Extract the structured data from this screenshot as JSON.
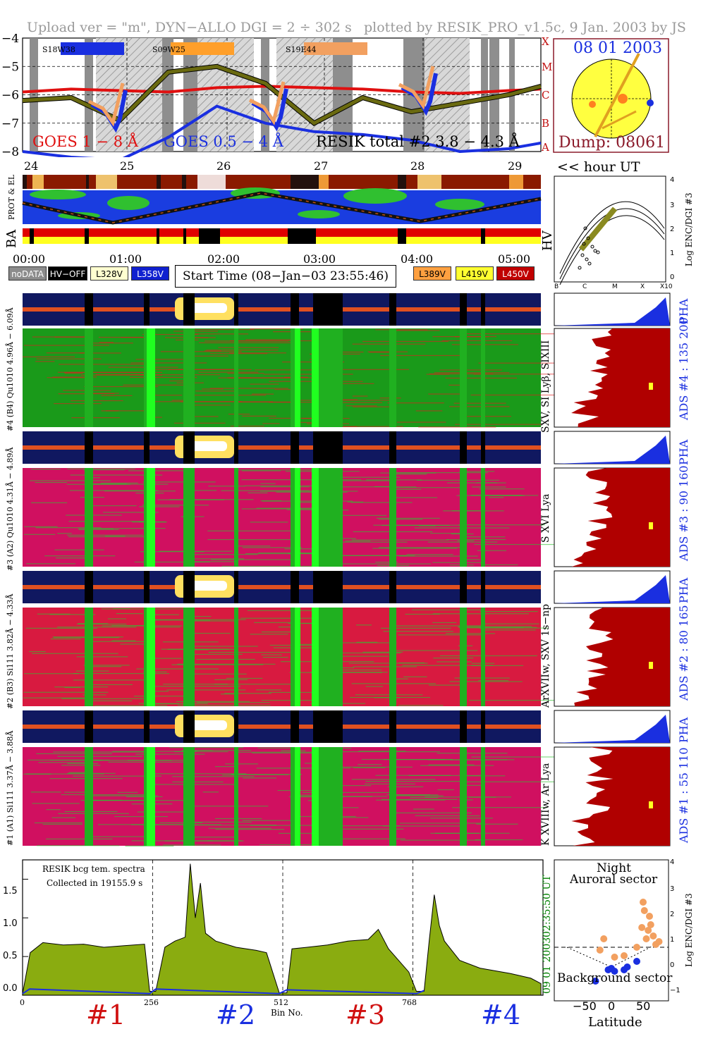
{
  "header": {
    "upload": "Upload ver = \"m\", DYN−ALLO DGI =   2 ÷ 302 s",
    "plotted": "plotted by RESIK_PRO_v1.5c, 9 Jan. 2003 by JS"
  },
  "goes": {
    "yticks": [
      "−4",
      "−5",
      "−6",
      "−7",
      "−8"
    ],
    "right_class": [
      "X",
      "M",
      "C",
      "B",
      "A"
    ],
    "flares": [
      {
        "label": "S18W38",
        "color": "#1a2fe0"
      },
      {
        "label": "S09W25",
        "color": "#ff9f2a"
      },
      {
        "label": "S19E44",
        "color": "#f2a060"
      }
    ],
    "legend": [
      {
        "text": "GOES 1 − 8 Å",
        "color": "#e01010"
      },
      {
        "text": "GOES 0.5 − 4 Å",
        "color": "#1a2fe0"
      },
      {
        "text": "RESIK total #2  3.8 − 4.3 Å",
        "color": "#000000"
      }
    ]
  },
  "sun": {
    "date": "08 01 2003",
    "dump": "Dump: 08061"
  },
  "orbit": {
    "ticks": [
      "24",
      "25",
      "26",
      "27",
      "28",
      "29"
    ],
    "hour_label": "<< hour UT",
    "prot_label": "PROT & EL",
    "ba_label": "BA",
    "hv_label": "HV"
  },
  "time_axis": {
    "ticks": [
      "00:00",
      "01:00",
      "02:00",
      "03:00",
      "04:00",
      "05:00"
    ]
  },
  "status_buttons": [
    {
      "label": "noDATA",
      "bg": "#8c8c8c",
      "fg": "#ffffff"
    },
    {
      "label": "HV−OFF",
      "bg": "#000000",
      "fg": "#ffffff"
    },
    {
      "label": "L328V",
      "bg": "#ffffd0",
      "fg": "#000000"
    },
    {
      "label": "L358V",
      "bg": "#1020d0",
      "fg": "#ffffff"
    },
    {
      "label": "L389V",
      "bg": "#ffa040",
      "fg": "#000000"
    },
    {
      "label": "L419V",
      "bg": "#ffff30",
      "fg": "#000000"
    },
    {
      "label": "L450V",
      "bg": "#c00000",
      "fg": "#ffffff"
    }
  ],
  "start_time": "Start Time (08−Jan−03 23:55:46)",
  "hv_plot": {
    "right_label": "Log ENC/DGI #3",
    "yticks": [
      "0",
      "1",
      "2",
      "3",
      "4"
    ],
    "xticks": [
      "B",
      "C",
      "M",
      "X",
      "X10"
    ]
  },
  "channels": [
    {
      "left_pha": "#4 (B4) Qu1010 4.96Å − 6.09Å",
      "left_ads": "",
      "lines": "SXV, SI Lyβ, SIXIII",
      "ads": "ADS #4 :  135 200",
      "pha": "PHA"
    },
    {
      "left_pha": "#3 (A2) Qu1010 4.31Å − 4.89Å",
      "left_ads": "",
      "lines": "S XVI Lya",
      "ads": "ADS #3 :   90 160",
      "pha": "PHA"
    },
    {
      "left_pha": "#2 (B3) Si111 3.82Å − 4.33Å",
      "left_ads": "",
      "lines": "ArXVIIw, SXV 1s−np",
      "ads": "ADS #2 :   80 165",
      "pha": "PHA"
    },
    {
      "left_pha": "#1 (A1) Si111 3.37Å − 3.88Å",
      "left_ads": "",
      "lines": "K XVIIIw, Ar Lya",
      "ads": "ADS #1 :   55 110",
      "pha": "PHA"
    }
  ],
  "spectrum": {
    "annotation_line1": "RESIK bcg tem. spectra",
    "annotation_line2": "Collected in 19155.9 s",
    "yticks": [
      "0.0",
      "0.5",
      "1.0",
      "1.5"
    ],
    "xticks": [
      "0",
      "256",
      "512",
      "768"
    ],
    "xlabel": "Bin No.",
    "right_time": "02:35:50 UT",
    "right_date": "09 01 2003",
    "sections": [
      {
        "label": "#1",
        "color": "#d01010"
      },
      {
        "label": "#2",
        "color": "#1a2fe0"
      },
      {
        "label": "#3",
        "color": "#d01010"
      },
      {
        "label": "#4",
        "color": "#1a2fe0"
      }
    ]
  },
  "latitude": {
    "title1": "Night",
    "title2": "Auroral sector",
    "bottom": "Background sector",
    "xlabel": "Latitude",
    "xticks": [
      "−50",
      "0",
      "50"
    ],
    "yticks": [
      "−1",
      "0",
      "1",
      "2",
      "3",
      "4"
    ],
    "ylabel": "Log ENC/DGI #3"
  },
  "chart_data": [
    {
      "type": "line",
      "title": "",
      "xlabel": "",
      "ylabel": "",
      "yscale": "log",
      "ylim": [
        -8,
        -4
      ],
      "series": [
        {
          "name": "GOES 1 − 8 Å",
          "x": [
            "00:00",
            "00:30",
            "01:00",
            "01:30",
            "02:00",
            "02:30",
            "03:00",
            "03:30",
            "04:00",
            "04:30",
            "05:00",
            "05:20"
          ],
          "values": [
            -5.9,
            -5.8,
            -5.85,
            -5.9,
            -5.75,
            -5.7,
            -5.75,
            -5.8,
            -5.9,
            -5.95,
            -5.85,
            -5.8
          ]
        },
        {
          "name": "GOES 0.5 − 4 Å",
          "x": [
            "00:00",
            "00:30",
            "01:00",
            "01:30",
            "02:00",
            "02:30",
            "03:00",
            "03:30",
            "04:00",
            "04:30",
            "05:00",
            "05:20"
          ],
          "values": [
            -8.0,
            -8.2,
            -8.3,
            -7.5,
            -6.4,
            -7.0,
            -7.3,
            -7.4,
            -7.6,
            -8.0,
            -7.9,
            -7.7
          ]
        },
        {
          "name": "RESIK total #2  3.8 − 4.3 Å",
          "x": [
            "00:00",
            "00:30",
            "01:00",
            "01:30",
            "02:00",
            "02:30",
            "03:00",
            "03:30",
            "04:00",
            "04:30",
            "05:00",
            "05:20"
          ],
          "values": [
            -6.2,
            -6.1,
            -6.9,
            -5.2,
            -5.0,
            -5.6,
            -7.0,
            -6.1,
            -6.6,
            -6.3,
            -6.0,
            -5.7
          ]
        }
      ]
    },
    {
      "type": "area",
      "title": "",
      "xlabel": "Bin No.",
      "ylabel": "",
      "xlim": [
        0,
        1024
      ],
      "ylim": [
        0,
        1.75
      ],
      "series": [
        {
          "name": "",
          "x": [
            0,
            15,
            40,
            80,
            120,
            160,
            200,
            240,
            250,
            262,
            280,
            300,
            320,
            330,
            340,
            350,
            360,
            380,
            420,
            460,
            480,
            505,
            520,
            530,
            560,
            600,
            640,
            680,
            700,
            720,
            760,
            775,
            790,
            800,
            810,
            820,
            830,
            860,
            900,
            960,
            1000,
            1020
          ],
          "values": [
            0.02,
            0.55,
            0.68,
            0.65,
            0.66,
            0.62,
            0.64,
            0.66,
            0.05,
            0.05,
            0.62,
            0.7,
            0.75,
            1.7,
            1.0,
            1.45,
            0.8,
            0.7,
            0.62,
            0.58,
            0.55,
            0.03,
            0.03,
            0.6,
            0.62,
            0.65,
            0.7,
            0.72,
            0.85,
            0.6,
            0.3,
            0.05,
            0.05,
            0.7,
            1.3,
            0.9,
            0.7,
            0.45,
            0.35,
            0.28,
            0.22,
            0.15
          ]
        }
      ]
    },
    {
      "type": "scatter",
      "title": "",
      "xlabel": "Latitude",
      "ylabel": "Log ENC/DGI #3",
      "xlim": [
        -90,
        90
      ],
      "ylim": [
        -1,
        4
      ],
      "series": [
        {
          "name": "Auroral sector",
          "x": [
            -18,
            -12,
            5,
            20,
            40,
            48,
            50,
            52,
            55,
            58,
            60,
            62,
            66,
            70,
            75
          ],
          "values": [
            0.8,
            1.2,
            0.55,
            0.6,
            0.9,
            1.6,
            2.5,
            2.2,
            1.2,
            1.5,
            2.0,
            1.7,
            1.3,
            1.0,
            1.1
          ]
        },
        {
          "name": "Background sector",
          "x": [
            -25,
            -5,
            0,
            5,
            20,
            25,
            40
          ],
          "values": [
            -0.3,
            0.1,
            0.15,
            0.05,
            0.1,
            0.2,
            0.4
          ]
        }
      ]
    }
  ]
}
